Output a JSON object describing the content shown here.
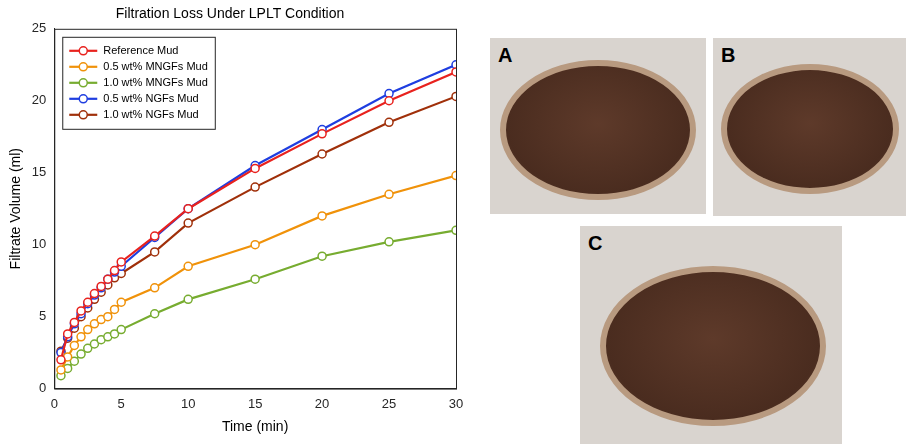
{
  "chart_data": {
    "type": "line",
    "title": "Filtration Loss Under LPLT Condition",
    "x_label": "Time (min)",
    "y_label": "Filtrate Volume (ml)",
    "x": [
      0.5,
      1,
      1.5,
      2,
      2.5,
      3,
      3.5,
      4,
      4.5,
      5,
      7.5,
      10,
      15,
      20,
      25,
      30
    ],
    "series": [
      {
        "name": "Reference Mud",
        "color": "#e8221e",
        "values": [
          2.0,
          3.8,
          4.6,
          5.4,
          6.0,
          6.6,
          7.1,
          7.6,
          8.2,
          8.8,
          10.6,
          12.5,
          15.3,
          17.7,
          20.0,
          22.0
        ]
      },
      {
        "name": "0.5 wt% MNGFs Mud",
        "color": "#f0920a",
        "values": [
          1.3,
          2.2,
          3.0,
          3.6,
          4.1,
          4.5,
          4.8,
          5.0,
          5.5,
          6.0,
          7.0,
          8.5,
          10.0,
          12.0,
          13.5,
          14.8
        ]
      },
      {
        "name": "1.0 wt% MNGFs Mud",
        "color": "#77ac30",
        "values": [
          0.9,
          1.4,
          1.9,
          2.4,
          2.8,
          3.1,
          3.4,
          3.6,
          3.8,
          4.1,
          5.2,
          6.2,
          7.6,
          9.2,
          10.2,
          11.0
        ]
      },
      {
        "name": "0.5 wt% NGFs Mud",
        "color": "#1f3ee0",
        "values": [
          2.5,
          3.6,
          4.5,
          5.2,
          5.9,
          6.5,
          7.0,
          7.6,
          8.1,
          8.5,
          10.5,
          12.5,
          15.5,
          18.0,
          20.5,
          22.5
        ]
      },
      {
        "name": "1.0 wt% NGFs Mud",
        "color": "#a0300a",
        "values": [
          2.6,
          3.5,
          4.2,
          5.0,
          5.6,
          6.2,
          6.7,
          7.2,
          7.7,
          8.0,
          9.5,
          11.5,
          14.0,
          16.3,
          18.5,
          20.3
        ]
      }
    ],
    "xlim": [
      0,
      30
    ],
    "xticks": [
      0,
      5,
      10,
      15,
      20,
      25,
      30
    ],
    "ylim": [
      0,
      25
    ],
    "yticks": [
      0,
      5,
      10,
      15,
      20,
      25
    ],
    "grid": false,
    "legend": "upper left",
    "marker": "open circle",
    "line_style": "solid"
  },
  "images": [
    {
      "label": "A"
    },
    {
      "label": "B"
    },
    {
      "label": "C"
    }
  ]
}
